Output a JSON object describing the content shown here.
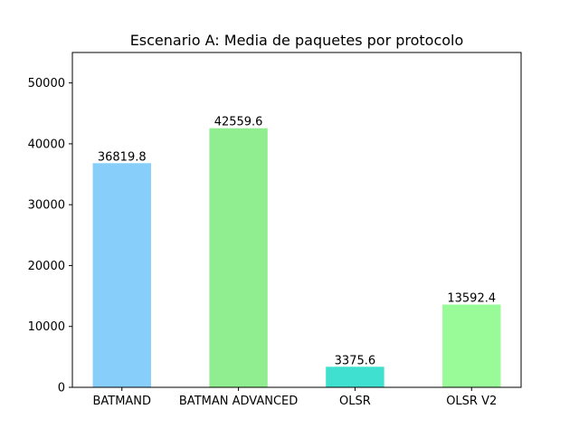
{
  "chart_data": {
    "type": "bar",
    "title": "Escenario A: Media de paquetes por protocolo",
    "xlabel": "",
    "ylabel": "",
    "categories": [
      "BATMAND",
      "BATMAN ADVANCED",
      "OLSR",
      "OLSR V2"
    ],
    "values": [
      36819.8,
      42559.6,
      3375.6,
      13592.4
    ],
    "value_labels": [
      "36819.8",
      "42559.6",
      "3375.6",
      "13592.4"
    ],
    "bar_colors": [
      "#87cefa",
      "#90ee90",
      "#40e0d0",
      "#98fb98"
    ],
    "ylim": [
      0,
      55000
    ],
    "yticks": [
      0,
      10000,
      20000,
      30000,
      40000,
      50000
    ],
    "grid": false,
    "legend": "none"
  }
}
